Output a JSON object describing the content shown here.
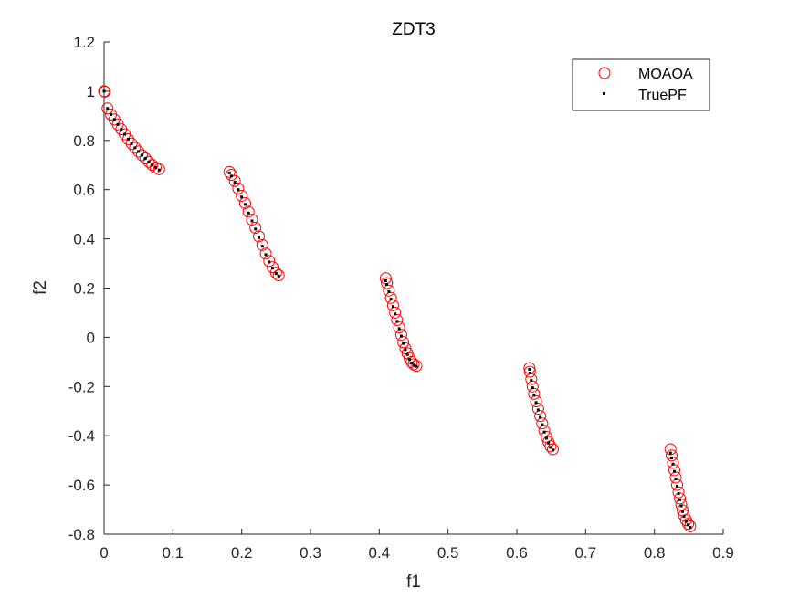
{
  "colors": {
    "moaoa": "#ff0000",
    "truepf": "#000000",
    "axis": "#262626",
    "background": "#ffffff"
  },
  "chart_data": {
    "type": "scatter",
    "title": "ZDT3",
    "xlabel": "f1",
    "ylabel": "f2",
    "xlim": [
      0,
      0.9
    ],
    "ylim": [
      -0.8,
      1.2
    ],
    "xticks": [
      0,
      0.1,
      0.2,
      0.3,
      0.4,
      0.5,
      0.6,
      0.7,
      0.8,
      0.9
    ],
    "yticks": [
      -0.8,
      -0.6,
      -0.4,
      -0.2,
      0,
      0.2,
      0.4,
      0.6,
      0.8,
      1,
      1.2
    ],
    "xtick_labels": [
      "0",
      "0.1",
      "0.2",
      "0.3",
      "0.4",
      "0.5",
      "0.6",
      "0.7",
      "0.8",
      "0.9"
    ],
    "ytick_labels": [
      "-0.8",
      "-0.6",
      "-0.4",
      "-0.2",
      "0",
      "0.2",
      "0.4",
      "0.6",
      "0.8",
      "1",
      "1.2"
    ],
    "grid": false,
    "box": false,
    "legend": {
      "position": "top-right",
      "entries": [
        "MOAOA",
        "TruePF"
      ]
    },
    "series": [
      {
        "name": "MOAOA",
        "marker": "open-circle",
        "color": "#ff0000",
        "points": [
          [
            0.0,
            1.0
          ],
          [
            0.001,
            0.998
          ],
          [
            0.005,
            0.93
          ],
          [
            0.01,
            0.905
          ],
          [
            0.015,
            0.885
          ],
          [
            0.02,
            0.865
          ],
          [
            0.025,
            0.845
          ],
          [
            0.03,
            0.825
          ],
          [
            0.035,
            0.805
          ],
          [
            0.04,
            0.787
          ],
          [
            0.045,
            0.77
          ],
          [
            0.05,
            0.755
          ],
          [
            0.055,
            0.74
          ],
          [
            0.06,
            0.727
          ],
          [
            0.065,
            0.713
          ],
          [
            0.07,
            0.7
          ],
          [
            0.075,
            0.69
          ],
          [
            0.08,
            0.683
          ],
          [
            0.1822,
            0.672
          ],
          [
            0.185,
            0.66
          ],
          [
            0.19,
            0.635
          ],
          [
            0.195,
            0.605
          ],
          [
            0.2,
            0.575
          ],
          [
            0.205,
            0.545
          ],
          [
            0.21,
            0.51
          ],
          [
            0.215,
            0.478
          ],
          [
            0.22,
            0.445
          ],
          [
            0.225,
            0.41
          ],
          [
            0.23,
            0.375
          ],
          [
            0.235,
            0.34
          ],
          [
            0.24,
            0.31
          ],
          [
            0.245,
            0.285
          ],
          [
            0.25,
            0.262
          ],
          [
            0.2538,
            0.252
          ],
          [
            0.4093,
            0.24
          ],
          [
            0.411,
            0.22
          ],
          [
            0.414,
            0.19
          ],
          [
            0.417,
            0.16
          ],
          [
            0.42,
            0.13
          ],
          [
            0.423,
            0.1
          ],
          [
            0.426,
            0.07
          ],
          [
            0.429,
            0.04
          ],
          [
            0.432,
            0.01
          ],
          [
            0.435,
            -0.02
          ],
          [
            0.438,
            -0.045
          ],
          [
            0.441,
            -0.065
          ],
          [
            0.444,
            -0.085
          ],
          [
            0.447,
            -0.1
          ],
          [
            0.45,
            -0.11
          ],
          [
            0.454,
            -0.116
          ],
          [
            0.6184,
            -0.125
          ],
          [
            0.619,
            -0.14
          ],
          [
            0.621,
            -0.17
          ],
          [
            0.623,
            -0.2
          ],
          [
            0.625,
            -0.23
          ],
          [
            0.628,
            -0.26
          ],
          [
            0.631,
            -0.29
          ],
          [
            0.634,
            -0.32
          ],
          [
            0.637,
            -0.35
          ],
          [
            0.64,
            -0.38
          ],
          [
            0.643,
            -0.405
          ],
          [
            0.646,
            -0.425
          ],
          [
            0.649,
            -0.443
          ],
          [
            0.6524,
            -0.455
          ],
          [
            0.8233,
            -0.455
          ],
          [
            0.825,
            -0.48
          ],
          [
            0.827,
            -0.51
          ],
          [
            0.829,
            -0.54
          ],
          [
            0.831,
            -0.57
          ],
          [
            0.833,
            -0.6
          ],
          [
            0.835,
            -0.63
          ],
          [
            0.837,
            -0.655
          ],
          [
            0.839,
            -0.68
          ],
          [
            0.841,
            -0.703
          ],
          [
            0.843,
            -0.723
          ],
          [
            0.846,
            -0.743
          ],
          [
            0.849,
            -0.758
          ],
          [
            0.852,
            -0.768
          ]
        ]
      },
      {
        "name": "TruePF",
        "marker": "dot",
        "color": "#000000",
        "points": [
          [
            0.0,
            1.0
          ],
          [
            0.005,
            0.93
          ],
          [
            0.01,
            0.905
          ],
          [
            0.015,
            0.885
          ],
          [
            0.02,
            0.865
          ],
          [
            0.025,
            0.845
          ],
          [
            0.03,
            0.825
          ],
          [
            0.035,
            0.805
          ],
          [
            0.04,
            0.787
          ],
          [
            0.045,
            0.77
          ],
          [
            0.05,
            0.755
          ],
          [
            0.055,
            0.74
          ],
          [
            0.06,
            0.727
          ],
          [
            0.065,
            0.713
          ],
          [
            0.07,
            0.7
          ],
          [
            0.075,
            0.69
          ],
          [
            0.08,
            0.68
          ],
          [
            0.1822,
            0.668
          ],
          [
            0.185,
            0.655
          ],
          [
            0.19,
            0.63
          ],
          [
            0.195,
            0.6
          ],
          [
            0.2,
            0.57
          ],
          [
            0.205,
            0.54
          ],
          [
            0.21,
            0.505
          ],
          [
            0.215,
            0.473
          ],
          [
            0.22,
            0.44
          ],
          [
            0.225,
            0.405
          ],
          [
            0.23,
            0.37
          ],
          [
            0.235,
            0.336
          ],
          [
            0.24,
            0.306
          ],
          [
            0.245,
            0.281
          ],
          [
            0.25,
            0.259
          ],
          [
            0.2538,
            0.249
          ],
          [
            0.4093,
            0.23
          ],
          [
            0.411,
            0.215
          ],
          [
            0.414,
            0.185
          ],
          [
            0.417,
            0.155
          ],
          [
            0.42,
            0.125
          ],
          [
            0.423,
            0.095
          ],
          [
            0.426,
            0.065
          ],
          [
            0.429,
            0.035
          ],
          [
            0.432,
            0.005
          ],
          [
            0.435,
            -0.025
          ],
          [
            0.438,
            -0.05
          ],
          [
            0.441,
            -0.07
          ],
          [
            0.444,
            -0.09
          ],
          [
            0.447,
            -0.104
          ],
          [
            0.45,
            -0.113
          ],
          [
            0.454,
            -0.118
          ],
          [
            0.6184,
            -0.13
          ],
          [
            0.619,
            -0.145
          ],
          [
            0.621,
            -0.175
          ],
          [
            0.623,
            -0.205
          ],
          [
            0.625,
            -0.235
          ],
          [
            0.628,
            -0.265
          ],
          [
            0.631,
            -0.295
          ],
          [
            0.634,
            -0.325
          ],
          [
            0.637,
            -0.355
          ],
          [
            0.64,
            -0.385
          ],
          [
            0.643,
            -0.41
          ],
          [
            0.646,
            -0.43
          ],
          [
            0.649,
            -0.447
          ],
          [
            0.6524,
            -0.458
          ],
          [
            0.8233,
            -0.47
          ],
          [
            0.825,
            -0.49
          ],
          [
            0.827,
            -0.515
          ],
          [
            0.829,
            -0.545
          ],
          [
            0.831,
            -0.575
          ],
          [
            0.833,
            -0.605
          ],
          [
            0.835,
            -0.635
          ],
          [
            0.837,
            -0.66
          ],
          [
            0.839,
            -0.685
          ],
          [
            0.841,
            -0.708
          ],
          [
            0.843,
            -0.728
          ],
          [
            0.846,
            -0.748
          ],
          [
            0.849,
            -0.762
          ],
          [
            0.852,
            -0.772
          ]
        ]
      }
    ]
  }
}
